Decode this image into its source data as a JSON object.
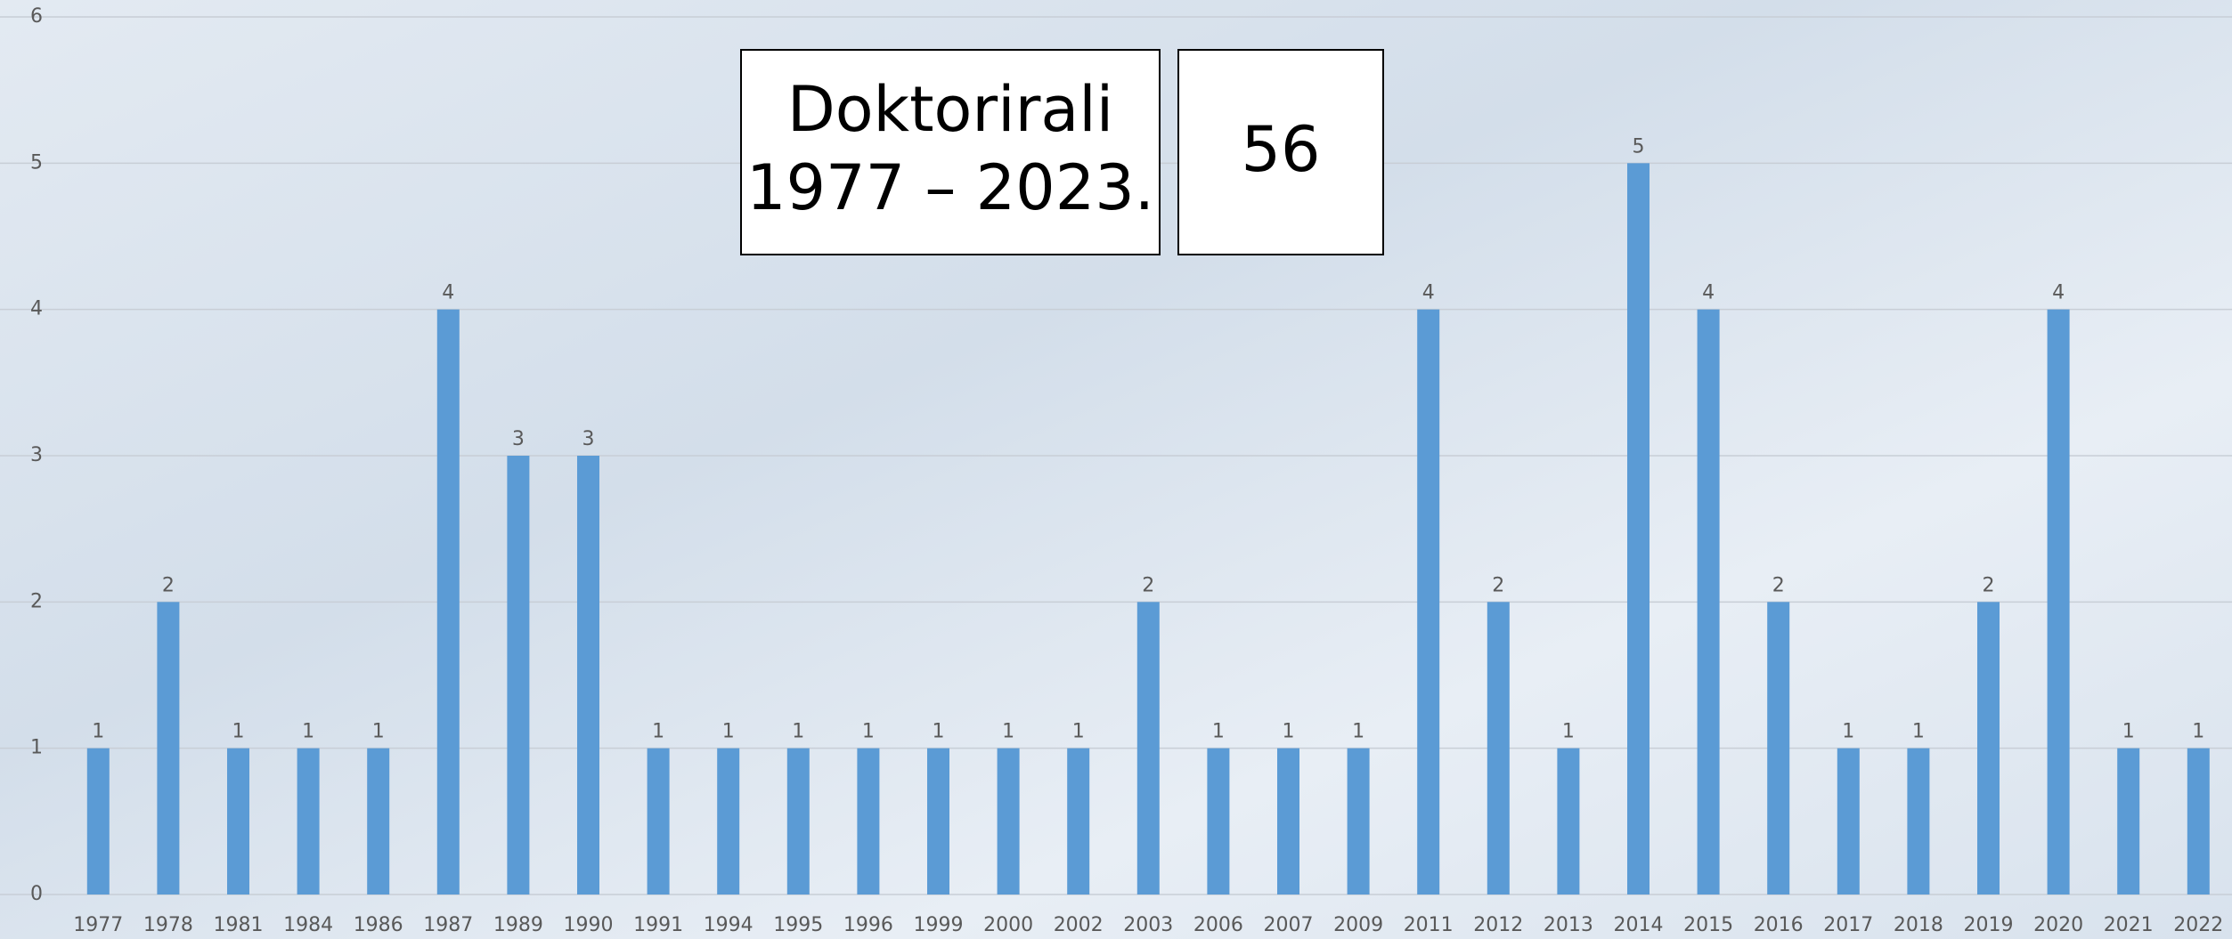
{
  "chart_data": {
    "type": "bar",
    "title": [
      "Doktorirali",
      "1977 – 2023."
    ],
    "total": 56,
    "categories": [
      "1977",
      "1978",
      "1981",
      "1984",
      "1986",
      "1987",
      "1989",
      "1990",
      "1991",
      "1994",
      "1995",
      "1996",
      "1999",
      "2000",
      "2002",
      "2003",
      "2006",
      "2007",
      "2009",
      "2011",
      "2012",
      "2013",
      "2014",
      "2015",
      "2016",
      "2017",
      "2018",
      "2019",
      "2020",
      "2021",
      "2022"
    ],
    "values": [
      1,
      2,
      1,
      1,
      1,
      4,
      3,
      3,
      1,
      1,
      1,
      1,
      1,
      1,
      1,
      2,
      1,
      1,
      1,
      4,
      2,
      1,
      5,
      4,
      2,
      1,
      1,
      2,
      4,
      1,
      1
    ],
    "color": "#5b9bd5",
    "ylim": [
      0,
      6
    ],
    "yticks": [
      0,
      1,
      2,
      3,
      4,
      5,
      6
    ],
    "grid": true
  }
}
